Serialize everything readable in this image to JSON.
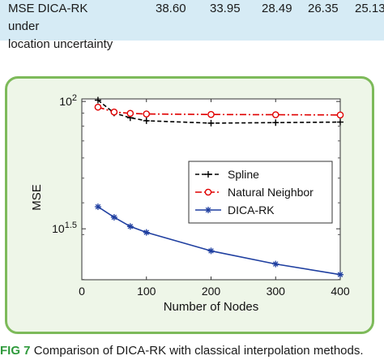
{
  "table": {
    "row_label_line1": "MSE DICA-RK under",
    "row_label_line2": "location uncertainty",
    "values": [
      "38.60",
      "33.95",
      "28.49",
      "26.35",
      "25.13"
    ]
  },
  "caption": {
    "label": "FIG 7",
    "text": "Comparison of DICA-RK with classical interpolation methods."
  },
  "colors": {
    "table_band": "#d6ebf5",
    "frame_border": "#7dba5a",
    "frame_fill": "#eef6e8",
    "spline": "#000000",
    "natural_neighbor": "#e00000",
    "dica_rk": "#1f3fa0"
  },
  "chart_data": {
    "type": "line",
    "xlabel": "Number of Nodes",
    "ylabel": "MSE",
    "y_scale": "log",
    "xlim": [
      0,
      400
    ],
    "ylim_log10": [
      1.3,
      2.01
    ],
    "x_ticks": [
      "0",
      "100",
      "200",
      "300",
      "400"
    ],
    "y_ticks": [
      {
        "base": "10",
        "exp": "2",
        "log10": 2.0
      },
      {
        "base": "10",
        "exp": "1.5",
        "log10": 1.5
      }
    ],
    "legend_position": "right",
    "series": [
      {
        "name": "Spline",
        "style": "dashed",
        "marker": "plus",
        "color": "#000000",
        "x": [
          25,
          50,
          75,
          100,
          200,
          300,
          400
        ],
        "y": [
          101.2,
          90.1,
          86.3,
          84.0,
          82.2,
          82.6,
          83.0
        ]
      },
      {
        "name": "Natural Neighbor",
        "style": "dashdot",
        "marker": "circle",
        "color": "#e00000",
        "x": [
          25,
          50,
          75,
          100,
          200,
          300,
          400
        ],
        "y": [
          95.0,
          90.9,
          89.8,
          89.3,
          88.9,
          88.7,
          88.5
        ]
      },
      {
        "name": "DICA-RK",
        "style": "solid",
        "marker": "star",
        "color": "#1f3fa0",
        "x": [
          25,
          50,
          75,
          100,
          200,
          300,
          400
        ],
        "y": [
          38.6,
          35.1,
          32.3,
          30.6,
          25.9,
          23.0,
          20.9
        ]
      }
    ]
  }
}
